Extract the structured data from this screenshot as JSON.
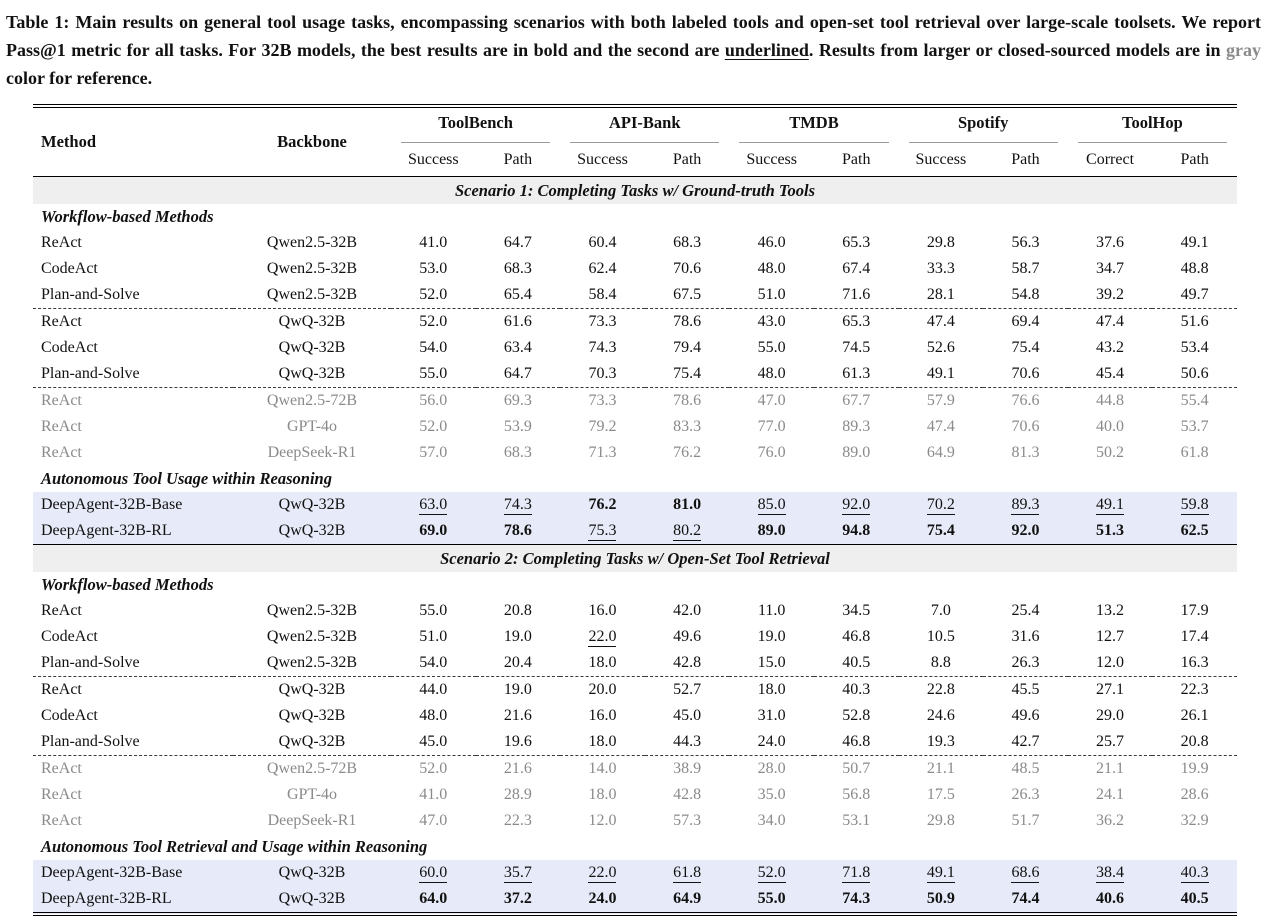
{
  "caption": {
    "p1": "Table 1: Main results on general tool usage tasks, encompassing scenarios with both labeled tools and open-set tool retrieval over large-scale toolsets. We report Pass@1 metric for all tasks. For 32B models, the best results are in bold and the second are ",
    "underlined_word": "underlined",
    "p2": ". Results from larger or closed-sourced models are in ",
    "gray_word": "gray",
    "p3": " color for reference."
  },
  "colors": {
    "highlight_bg": "#e7eaf8",
    "band_bg": "#efefef",
    "gray_text": "#8a8a8a"
  },
  "table": {
    "header": {
      "method": "Method",
      "backbone": "Backbone",
      "groups": [
        {
          "name": "ToolBench",
          "cols": [
            "Success",
            "Path"
          ]
        },
        {
          "name": "API-Bank",
          "cols": [
            "Success",
            "Path"
          ]
        },
        {
          "name": "TMDB",
          "cols": [
            "Success",
            "Path"
          ]
        },
        {
          "name": "Spotify",
          "cols": [
            "Success",
            "Path"
          ]
        },
        {
          "name": "ToolHop",
          "cols": [
            "Correct",
            "Path"
          ]
        }
      ]
    },
    "value_format_legend": {
      "b:": "bold (best)",
      "u:": "underlined (second best)",
      "plain": "normal"
    },
    "sections": [
      {
        "band": "Scenario 1: Completing Tasks w/ Ground-truth Tools",
        "rows": [
          {
            "sub": "Workflow-based Methods"
          },
          {
            "m": "ReAct",
            "b": "Qwen2.5-32B",
            "variant": "plain",
            "dashed": false,
            "v": [
              "41.0",
              "64.7",
              "60.4",
              "68.3",
              "46.0",
              "65.3",
              "29.8",
              "56.3",
              "37.6",
              "49.1"
            ]
          },
          {
            "m": "CodeAct",
            "b": "Qwen2.5-32B",
            "variant": "plain",
            "dashed": false,
            "v": [
              "53.0",
              "68.3",
              "62.4",
              "70.6",
              "48.0",
              "67.4",
              "33.3",
              "58.7",
              "34.7",
              "48.8"
            ]
          },
          {
            "m": "Plan-and-Solve",
            "b": "Qwen2.5-32B",
            "variant": "plain",
            "dashed": false,
            "v": [
              "52.0",
              "65.4",
              "58.4",
              "67.5",
              "51.0",
              "71.6",
              "28.1",
              "54.8",
              "39.2",
              "49.7"
            ]
          },
          {
            "m": "ReAct",
            "b": "QwQ-32B",
            "variant": "plain",
            "dashed": true,
            "v": [
              "52.0",
              "61.6",
              "73.3",
              "78.6",
              "43.0",
              "65.3",
              "47.4",
              "69.4",
              "47.4",
              "51.6"
            ]
          },
          {
            "m": "CodeAct",
            "b": "QwQ-32B",
            "variant": "plain",
            "dashed": false,
            "v": [
              "54.0",
              "63.4",
              "74.3",
              "79.4",
              "55.0",
              "74.5",
              "52.6",
              "75.4",
              "43.2",
              "53.4"
            ]
          },
          {
            "m": "Plan-and-Solve",
            "b": "QwQ-32B",
            "variant": "plain",
            "dashed": false,
            "v": [
              "55.0",
              "64.7",
              "70.3",
              "75.4",
              "48.0",
              "61.3",
              "49.1",
              "70.6",
              "45.4",
              "50.6"
            ]
          },
          {
            "m": "ReAct",
            "b": "Qwen2.5-72B",
            "variant": "gray",
            "dashed": true,
            "v": [
              "56.0",
              "69.3",
              "73.3",
              "78.6",
              "47.0",
              "67.7",
              "57.9",
              "76.6",
              "44.8",
              "55.4"
            ]
          },
          {
            "m": "ReAct",
            "b": "GPT-4o",
            "variant": "gray",
            "dashed": false,
            "v": [
              "52.0",
              "53.9",
              "79.2",
              "83.3",
              "77.0",
              "89.3",
              "47.4",
              "70.6",
              "40.0",
              "53.7"
            ]
          },
          {
            "m": "ReAct",
            "b": "DeepSeek-R1",
            "variant": "gray",
            "dashed": false,
            "v": [
              "57.0",
              "68.3",
              "71.3",
              "76.2",
              "76.0",
              "89.0",
              "64.9",
              "81.3",
              "50.2",
              "61.8"
            ]
          },
          {
            "sub": "Autonomous Tool Usage within Reasoning"
          },
          {
            "m": "DeepAgent-32B-Base",
            "b": "QwQ-32B",
            "variant": "hl",
            "dashed": false,
            "v": [
              "u:63.0",
              "u:74.3",
              "b:76.2",
              "b:81.0",
              "u:85.0",
              "u:92.0",
              "u:70.2",
              "u:89.3",
              "u:49.1",
              "u:59.8"
            ]
          },
          {
            "m": "DeepAgent-32B-RL",
            "b": "QwQ-32B",
            "variant": "hl",
            "dashed": false,
            "v": [
              "b:69.0",
              "b:78.6",
              "u:75.3",
              "u:80.2",
              "b:89.0",
              "b:94.8",
              "b:75.4",
              "b:92.0",
              "b:51.3",
              "b:62.5"
            ]
          }
        ]
      },
      {
        "band": "Scenario 2: Completing Tasks w/ Open-Set Tool Retrieval",
        "rows": [
          {
            "sub": "Workflow-based Methods"
          },
          {
            "m": "ReAct",
            "b": "Qwen2.5-32B",
            "variant": "plain",
            "dashed": false,
            "v": [
              "55.0",
              "20.8",
              "16.0",
              "42.0",
              "11.0",
              "34.5",
              "7.0",
              "25.4",
              "13.2",
              "17.9"
            ]
          },
          {
            "m": "CodeAct",
            "b": "Qwen2.5-32B",
            "variant": "plain",
            "dashed": false,
            "v": [
              "51.0",
              "19.0",
              "u:22.0",
              "49.6",
              "19.0",
              "46.8",
              "10.5",
              "31.6",
              "12.7",
              "17.4"
            ]
          },
          {
            "m": "Plan-and-Solve",
            "b": "Qwen2.5-32B",
            "variant": "plain",
            "dashed": false,
            "v": [
              "54.0",
              "20.4",
              "18.0",
              "42.8",
              "15.0",
              "40.5",
              "8.8",
              "26.3",
              "12.0",
              "16.3"
            ]
          },
          {
            "m": "ReAct",
            "b": "QwQ-32B",
            "variant": "plain",
            "dashed": true,
            "v": [
              "44.0",
              "19.0",
              "20.0",
              "52.7",
              "18.0",
              "40.3",
              "22.8",
              "45.5",
              "27.1",
              "22.3"
            ]
          },
          {
            "m": "CodeAct",
            "b": "QwQ-32B",
            "variant": "plain",
            "dashed": false,
            "v": [
              "48.0",
              "21.6",
              "16.0",
              "45.0",
              "31.0",
              "52.8",
              "24.6",
              "49.6",
              "29.0",
              "26.1"
            ]
          },
          {
            "m": "Plan-and-Solve",
            "b": "QwQ-32B",
            "variant": "plain",
            "dashed": false,
            "v": [
              "45.0",
              "19.6",
              "18.0",
              "44.3",
              "24.0",
              "46.8",
              "19.3",
              "42.7",
              "25.7",
              "20.8"
            ]
          },
          {
            "m": "ReAct",
            "b": "Qwen2.5-72B",
            "variant": "gray",
            "dashed": true,
            "v": [
              "52.0",
              "21.6",
              "14.0",
              "38.9",
              "28.0",
              "50.7",
              "21.1",
              "48.5",
              "21.1",
              "19.9"
            ]
          },
          {
            "m": "ReAct",
            "b": "GPT-4o",
            "variant": "gray",
            "dashed": false,
            "v": [
              "41.0",
              "28.9",
              "18.0",
              "42.8",
              "35.0",
              "56.8",
              "17.5",
              "26.3",
              "24.1",
              "28.6"
            ]
          },
          {
            "m": "ReAct",
            "b": "DeepSeek-R1",
            "variant": "gray",
            "dashed": false,
            "v": [
              "47.0",
              "22.3",
              "12.0",
              "57.3",
              "34.0",
              "53.1",
              "29.8",
              "51.7",
              "36.2",
              "32.9"
            ]
          },
          {
            "sub": "Autonomous Tool Retrieval and Usage within Reasoning"
          },
          {
            "m": "DeepAgent-32B-Base",
            "b": "QwQ-32B",
            "variant": "hl",
            "dashed": false,
            "v": [
              "u:60.0",
              "u:35.7",
              "u:22.0",
              "u:61.8",
              "u:52.0",
              "u:71.8",
              "u:49.1",
              "u:68.6",
              "u:38.4",
              "u:40.3"
            ]
          },
          {
            "m": "DeepAgent-32B-RL",
            "b": "QwQ-32B",
            "variant": "hl",
            "dashed": false,
            "v": [
              "b:64.0",
              "b:37.2",
              "b:24.0",
              "b:64.9",
              "b:55.0",
              "b:74.3",
              "b:50.9",
              "b:74.4",
              "b:40.6",
              "b:40.5"
            ]
          }
        ]
      }
    ]
  }
}
